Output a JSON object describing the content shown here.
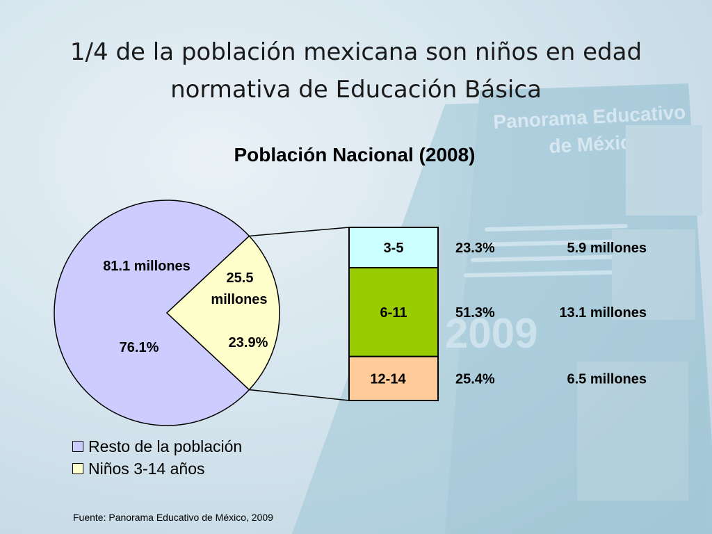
{
  "slide": {
    "title": "1/4 de la población mexicana son niños en edad normativa de Educación Básica",
    "source": "Fuente: Panorama Educativo de México, 2009"
  },
  "colors": {
    "resto": "#ccccff",
    "ninos": "#ffffcc",
    "age_3_5": "#ccffff",
    "age_6_11": "#99cc00",
    "age_12_14": "#ffcc99",
    "outline": "#000000"
  },
  "chart_data": [
    {
      "type": "pie",
      "title": "Población Nacional (2008)",
      "slices": [
        {
          "name": "Resto de la población",
          "value": 76.1,
          "count_label": "81.1 millones",
          "percent_label": "76.1%"
        },
        {
          "name": "Niños 3-14 años",
          "value": 23.9,
          "count_label_line1": "25.5",
          "count_label_line2": "millones",
          "percent_label": "23.9%"
        }
      ],
      "legend": [
        "Resto de la población",
        "Niños 3-14 años"
      ],
      "legend_position": "bottom-left"
    },
    {
      "type": "bar",
      "stacked": true,
      "categories": [
        "3-5",
        "6-11",
        "12-14"
      ],
      "values": [
        23.3,
        51.3,
        25.4
      ],
      "percent_labels": [
        "23.3%",
        "51.3%",
        "25.4%"
      ],
      "count_labels": [
        "5.9 millones",
        "13.1 millones",
        "6.5 millones"
      ],
      "millions": [
        5.9,
        13.1,
        6.5
      ]
    }
  ]
}
